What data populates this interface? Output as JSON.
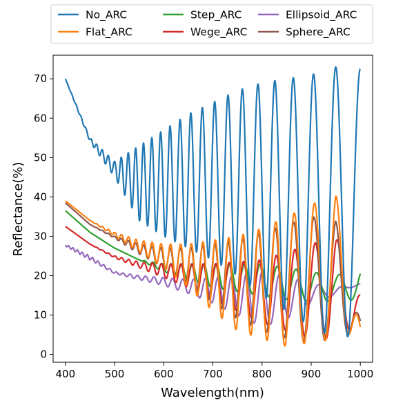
{
  "chart_data": {
    "type": "line",
    "title": "",
    "xlabel": "Wavelength(nm)",
    "ylabel": "Reflectance(%)",
    "xlim": [
      375,
      1025
    ],
    "ylim": [
      -2,
      76
    ],
    "xticks": [
      400,
      500,
      600,
      700,
      800,
      900,
      1000
    ],
    "yticks": [
      0,
      10,
      20,
      30,
      40,
      50,
      60,
      70
    ],
    "grid": false,
    "legend_position": "top",
    "series": [
      {
        "name": "No_ARC",
        "color": "#1f77b4",
        "x": [
          400,
          450,
          500,
          550,
          600,
          650,
          700,
          750,
          800,
          850,
          900,
          950,
          1000
        ],
        "envelope_max": [
          70,
          55,
          49,
          53,
          57,
          61,
          64,
          67,
          69,
          70,
          71,
          73,
          72.5
        ],
        "envelope_min": [
          70,
          54,
          45,
          34,
          30,
          27,
          24,
          20,
          15,
          11,
          7,
          4,
          5
        ]
      },
      {
        "name": "Flat_ARC",
        "color": "#ff7f0e",
        "x": [
          400,
          450,
          500,
          550,
          600,
          650,
          700,
          750,
          800,
          850,
          900,
          950,
          1000
        ],
        "envelope_max": [
          39,
          34,
          31,
          29,
          28,
          28,
          29,
          30,
          32,
          35,
          38,
          41,
          7
        ],
        "envelope_min": [
          39,
          34,
          30,
          26,
          22,
          17,
          11,
          6,
          4,
          2,
          3,
          4,
          6
        ]
      },
      {
        "name": "Step_ARC",
        "color": "#2ca02c",
        "x": [
          400,
          450,
          500,
          550,
          600,
          650,
          700,
          750,
          800,
          850,
          900,
          950,
          1000
        ],
        "envelope_max": [
          36.5,
          31,
          27,
          24,
          23,
          23,
          23,
          23,
          23,
          22,
          21,
          20,
          22
        ],
        "envelope_min": [
          36.5,
          31,
          27,
          24,
          21,
          19,
          17,
          16,
          15,
          14,
          13.5,
          13.5,
          14
        ]
      },
      {
        "name": "Wege_ARC",
        "color": "#d62728",
        "x": [
          400,
          450,
          500,
          550,
          600,
          650,
          700,
          750,
          800,
          850,
          900,
          950,
          1000
        ],
        "envelope_max": [
          32.5,
          28,
          25,
          23.5,
          23,
          23,
          23,
          23.5,
          24,
          26,
          28,
          30,
          15.5
        ],
        "envelope_min": [
          32.5,
          28,
          24.5,
          22,
          19.5,
          17,
          14,
          11,
          8,
          6,
          4,
          4,
          8
        ]
      },
      {
        "name": "Ellipsoid_ARC",
        "color": "#9467bd",
        "x": [
          400,
          450,
          500,
          550,
          600,
          650,
          700,
          750,
          800,
          850,
          900,
          950,
          1000
        ],
        "envelope_max": [
          28,
          25,
          21,
          20,
          19.5,
          19,
          19.5,
          20,
          21,
          20,
          18,
          17,
          18
        ],
        "envelope_min": [
          27.5,
          24,
          20.5,
          19,
          17.5,
          15.5,
          13,
          10,
          7,
          9,
          13,
          15,
          18
        ]
      },
      {
        "name": "Sphere_ARC",
        "color": "#8c564b",
        "x": [
          400,
          450,
          500,
          550,
          600,
          650,
          700,
          750,
          800,
          850,
          900,
          950,
          1000
        ],
        "envelope_max": [
          38.5,
          33,
          30,
          28,
          27,
          27,
          28,
          29,
          31,
          33,
          35,
          34,
          8.5
        ],
        "envelope_min": [
          38.5,
          33,
          29.5,
          25.5,
          22,
          18,
          13,
          9,
          6,
          4,
          3,
          4,
          6
        ]
      }
    ]
  }
}
